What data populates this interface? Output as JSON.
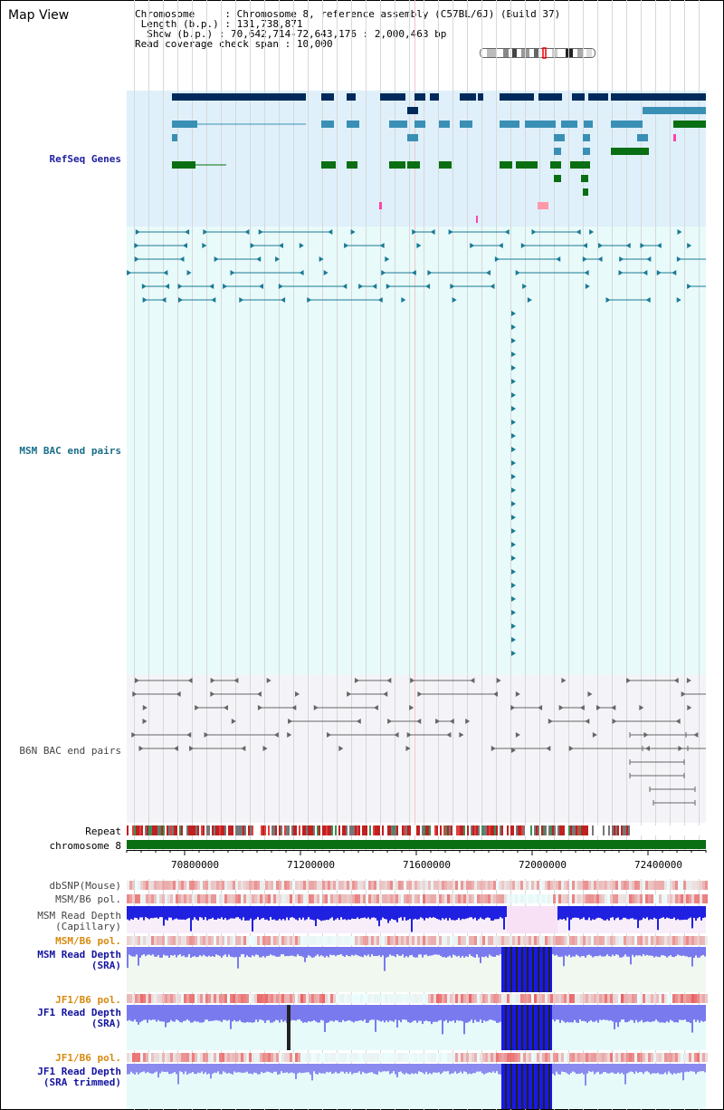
{
  "title": "Map View",
  "info": {
    "chromosome_key": "Chromosome    ",
    "chromosome_val": "Chromosome 8, reference assembly (C57BL/6J) (Build 37)",
    "length_key": " Length (b.p.)",
    "length_val": "131,738,871",
    "show_key": "  Show (b.p.)",
    "show_val": "70,642,714-72,643,176 : 2,000,463 bp",
    "span_key": "Read coverage check span",
    "span_val": "10,000"
  },
  "tracks": {
    "refseq": "RefSeq Genes",
    "msm_bac": "MSM BAC end pairs",
    "b6n_bac": "B6N BAC end pairs",
    "repeat": "Repeat",
    "chromosome": "chromosome 8",
    "dbsnp": "dbSNP(Mouse)",
    "msm_pol1": "MSM/B6 pol.",
    "msm_depth_cap_1": "MSM Read Depth",
    "msm_depth_cap_2": "(Capillary)",
    "msm_pol2": "MSM/B6 pol.",
    "msm_depth_sra_1": "MSM Read Depth",
    "msm_depth_sra_2": "(SRA)",
    "jf1_pol1": "JF1/B6 pol.",
    "jf1_depth_sra_1": "JF1 Read Depth",
    "jf1_depth_sra_2": "(SRA)",
    "jf1_pol2": "JF1/B6 pol.",
    "jf1_depth_trim_1": "JF1 Read Depth",
    "jf1_depth_trim_2": "(SRA trimmed)"
  },
  "axis": {
    "ticks": [
      "70800000",
      "71200000",
      "71600000",
      "72000000",
      "72400000"
    ]
  },
  "colors": {
    "refseq_bg": "#dff0fa",
    "msm_bg": "#e8fafa",
    "b6n_bg": "#f5f5fa",
    "gene_navy": "#002a5c",
    "gene_teal": "#3a8fb5",
    "gene_green": "#0a6e12",
    "chrom_green": "#0a6e12",
    "depth_blue": "#1818e8",
    "depth_light": "#7a7aef"
  }
}
